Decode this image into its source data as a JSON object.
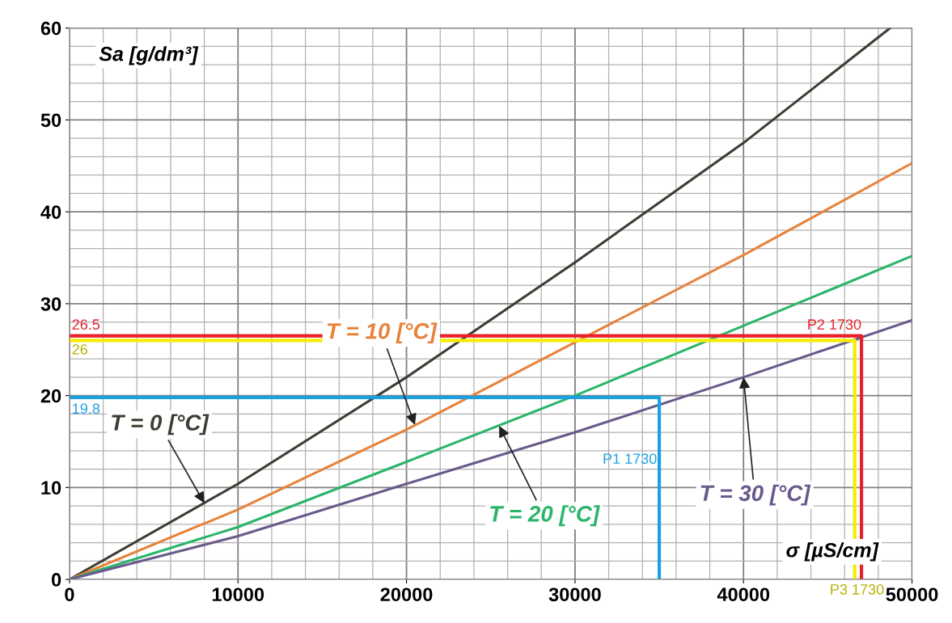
{
  "chart_data": {
    "type": "line",
    "xlabel": "σ [µS/cm]",
    "ylabel": "Sa [g/dm³]",
    "xlim": [
      0,
      50000
    ],
    "ylim": [
      0,
      60
    ],
    "xticks": [
      0,
      10000,
      20000,
      30000,
      40000,
      50000
    ],
    "yticks": [
      0,
      10,
      20,
      30,
      40,
      50,
      60
    ],
    "grid": true,
    "series": [
      {
        "color": "#3d3d33",
        "x": [
          0,
          10000,
          20000,
          30000,
          40000,
          48700
        ],
        "values": [
          0,
          10.4,
          22,
          34.5,
          47.5,
          60
        ]
      },
      {
        "color": "#e8823a",
        "x": [
          0,
          10000,
          20000,
          30000,
          40000,
          50000
        ],
        "values": [
          0,
          7.6,
          16.3,
          25.8,
          35.3,
          45.3
        ]
      },
      {
        "color": "#2bb56a",
        "x": [
          0,
          10000,
          20000,
          30000,
          40000,
          50000
        ],
        "values": [
          0,
          5.7,
          12.8,
          20,
          27.6,
          35.2
        ]
      },
      {
        "color": "#6a5a8c",
        "x": [
          0,
          10000,
          20000,
          30000,
          40000,
          50000
        ],
        "values": [
          0,
          4.7,
          10.4,
          16,
          22,
          28.2
        ]
      },
      {
        "color": "#e8202a",
        "x": [
          0,
          47000,
          47000
        ],
        "values": [
          26.5,
          26.5,
          0
        ]
      },
      {
        "color": "#f5ec00",
        "x": [
          0,
          46600,
          46600
        ],
        "values": [
          26,
          26,
          0
        ]
      },
      {
        "color": "#1ba1e2",
        "x": [
          0,
          35000,
          35000
        ],
        "values": [
          19.8,
          19.8,
          0
        ]
      }
    ],
    "annotations": [
      {
        "text": "T = 0 [°C]",
        "x": 8000,
        "y": 8.3
      },
      {
        "text": "T = 10 [°C]",
        "x": 20500,
        "y": 16.8
      },
      {
        "text": "T = 20 [°C]",
        "x": 25500,
        "y": 16.7
      },
      {
        "text": "T = 30 [°C]",
        "x": 40000,
        "y": 22
      },
      {
        "text": "26.5",
        "x": 0,
        "y": 26.5
      },
      {
        "text": "P2 1730",
        "x": 47000,
        "y": 26.5
      },
      {
        "text": "26",
        "x": 0,
        "y": 26
      },
      {
        "text": "P3 1730",
        "x": 46600,
        "y": 0
      },
      {
        "text": "19.8",
        "x": 0,
        "y": 19.8
      },
      {
        "text": "P1 1730",
        "x": 35000,
        "y": 13
      }
    ]
  }
}
